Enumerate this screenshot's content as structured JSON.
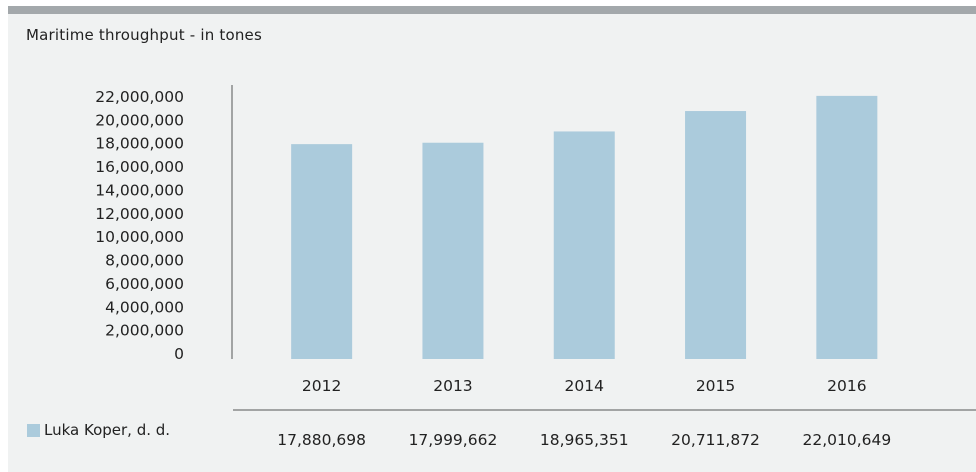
{
  "title": "Maritime throughput - in tones",
  "colors": {
    "bar": "#abcbdc",
    "axis": "#555555",
    "frame": "#f0f2f2",
    "top_bar": "#a3a8ab"
  },
  "chart_data": {
    "type": "bar",
    "title": "Maritime throughput - in tones",
    "categories": [
      "2012",
      "2013",
      "2014",
      "2015",
      "2016"
    ],
    "series": [
      {
        "name": "Luka Koper, d. d.",
        "values": [
          17880698,
          17999662,
          18965351,
          20711872,
          22010649
        ]
      }
    ],
    "value_labels": [
      "17,880,698",
      "17,999,662",
      "18,965,351",
      "20,711,872",
      "22,010,649"
    ],
    "yticks": [
      "0",
      "2,000,000",
      "4,000,000",
      "6,000,000",
      "8,000,000",
      "10,000,000",
      "12,000,000",
      "14,000,000",
      "16,000,000",
      "18,000,000",
      "20,000,000",
      "22,000,000"
    ],
    "ylim": [
      0,
      22000000
    ],
    "grid": false,
    "legend_position": "bottom-left"
  },
  "legend": {
    "label": "Luka Koper, d. d."
  }
}
